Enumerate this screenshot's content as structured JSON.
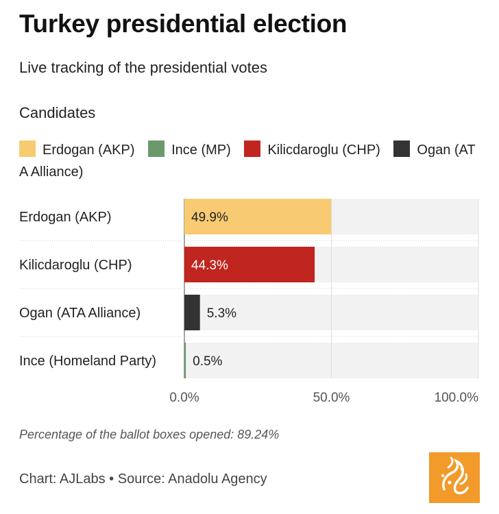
{
  "header": {
    "title": "Turkey presidential election",
    "subtitle": "Live tracking of the presidential votes"
  },
  "legend": {
    "title": "Candidates",
    "items": [
      {
        "label": "Erdogan (AKP)",
        "color": "#f8cb72"
      },
      {
        "label": "Ince (MP)",
        "color": "#6a9a6c"
      },
      {
        "label": "Kilicdaroglu (CHP)",
        "color": "#c0261f"
      },
      {
        "label": "Ogan (ATA Alliance)",
        "color": "#333333"
      }
    ]
  },
  "chart_data": {
    "type": "bar",
    "orientation": "horizontal",
    "title": "Turkey presidential election",
    "subtitle": "Live tracking of the presidential votes",
    "categories": [
      "Erdogan (AKP)",
      "Kilicdaroglu (CHP)",
      "Ogan (ATA Alliance)",
      "Ince (Homeland Party)"
    ],
    "values": [
      49.9,
      44.3,
      5.3,
      0.5
    ],
    "value_labels": [
      "49.9%",
      "44.3%",
      "5.3%",
      "0.5%"
    ],
    "colors": [
      "#f8cb72",
      "#c0261f",
      "#333333",
      "#6a9a6c"
    ],
    "label_colors": [
      "#222222",
      "#ffffff",
      "#222222",
      "#222222"
    ],
    "xlim": [
      0,
      100
    ],
    "ticks": [
      0,
      50,
      100
    ],
    "tick_labels": [
      "0.0%",
      "50.0%",
      "100.0%"
    ],
    "grid": true,
    "background_color": "#f2f2f2"
  },
  "footer": {
    "note": "Percentage of the ballot boxes opened: 89.24%",
    "source": "Chart: AJLabs • Source: Anadolu Agency",
    "logo_color": "#f29a2a"
  }
}
